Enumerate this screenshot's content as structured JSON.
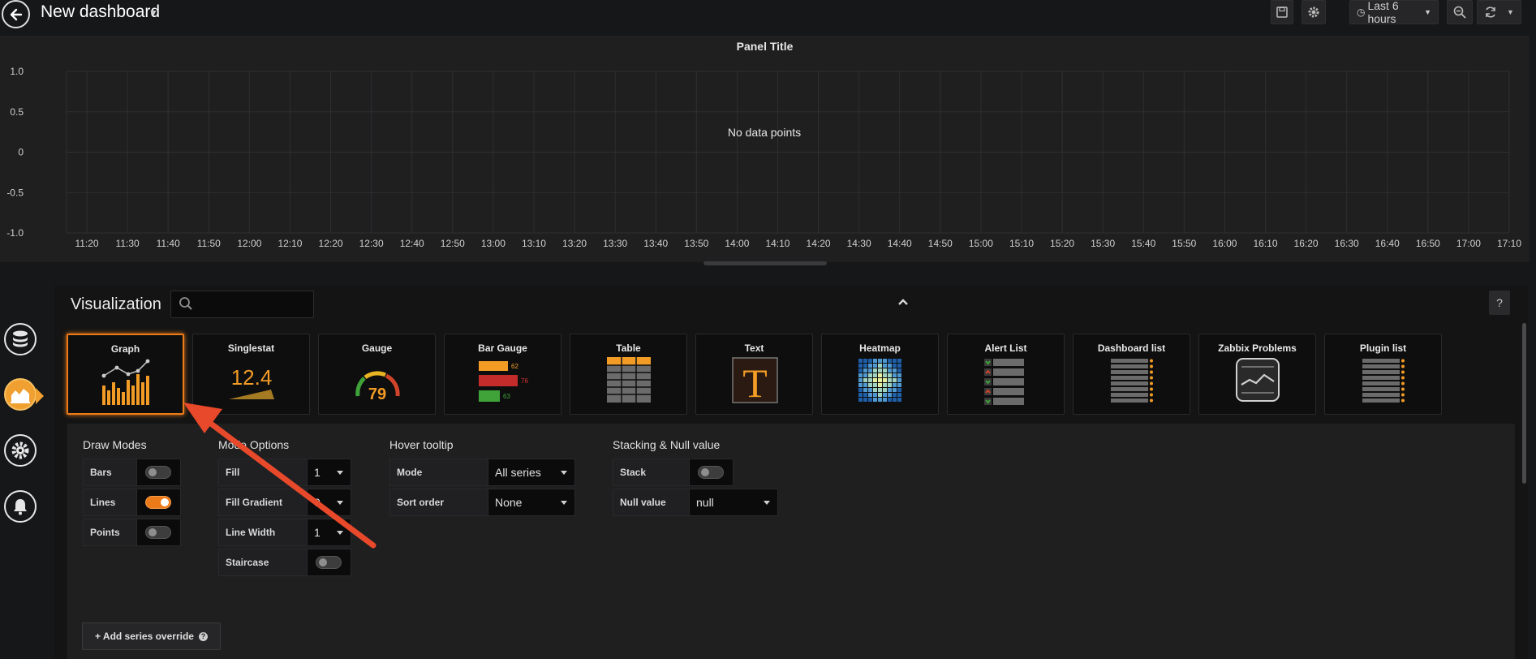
{
  "header": {
    "title": "New dashboard",
    "time_range": "Last 6 hours"
  },
  "graph_panel": {
    "title": "Panel Title",
    "no_data_text": "No data points",
    "y_ticks": [
      "1.0",
      "0.5",
      "0",
      "-0.5",
      "-1.0"
    ],
    "x_ticks": [
      "11:20",
      "11:30",
      "11:40",
      "11:50",
      "12:00",
      "12:10",
      "12:20",
      "12:30",
      "12:40",
      "12:50",
      "13:00",
      "13:10",
      "13:20",
      "13:30",
      "13:40",
      "13:50",
      "14:00",
      "14:10",
      "14:20",
      "14:30",
      "14:40",
      "14:50",
      "15:00",
      "15:10",
      "15:20",
      "15:30",
      "15:40",
      "15:50",
      "16:00",
      "16:10",
      "16:20",
      "16:30",
      "16:40",
      "16:50",
      "17:00",
      "17:10"
    ]
  },
  "visualization": {
    "title": "Visualization",
    "search_value": "",
    "types": [
      {
        "label": "Graph",
        "icon": "graph-viz-icon",
        "selected": true
      },
      {
        "label": "Singlestat",
        "icon": "singlestat-viz-icon",
        "value": "12.4"
      },
      {
        "label": "Gauge",
        "icon": "gauge-viz-icon",
        "value": "79"
      },
      {
        "label": "Bar Gauge",
        "icon": "bar-gauge-viz-icon",
        "values": [
          "62",
          "76",
          "63"
        ]
      },
      {
        "label": "Table",
        "icon": "table-viz-icon"
      },
      {
        "label": "Text",
        "icon": "text-viz-icon",
        "glyph": "T"
      },
      {
        "label": "Heatmap",
        "icon": "heatmap-viz-icon"
      },
      {
        "label": "Alert List",
        "icon": "alert-list-viz-icon"
      },
      {
        "label": "Dashboard list",
        "icon": "dashboard-list-viz-icon"
      },
      {
        "label": "Zabbix Problems",
        "icon": "zabbix-problems-viz-icon"
      },
      {
        "label": "Plugin list",
        "icon": "plugin-list-viz-icon"
      }
    ]
  },
  "draw_modes": {
    "title": "Draw Modes",
    "bars_label": "Bars",
    "bars_on": false,
    "lines_label": "Lines",
    "lines_on": true,
    "points_label": "Points",
    "points_on": false
  },
  "mode_options": {
    "title": "Mode Options",
    "fill_label": "Fill",
    "fill_value": "1",
    "fill_gradient_label": "Fill Gradient",
    "fill_gradient_value": "0",
    "line_width_label": "Line Width",
    "line_width_value": "1",
    "staircase_label": "Staircase",
    "staircase_on": false
  },
  "hover_tooltip": {
    "title": "Hover tooltip",
    "mode_label": "Mode",
    "mode_value": "All series",
    "sort_label": "Sort order",
    "sort_value": "None"
  },
  "stacking": {
    "title": "Stacking & Null value",
    "stack_label": "Stack",
    "stack_on": false,
    "null_label": "Null value",
    "null_value": "null"
  },
  "add_override_label": "+ Add series override",
  "help_label": "?",
  "colors": {
    "accent": "#eb7b18",
    "arrow": "#e8492b",
    "background": "#161719",
    "panel": "#1f1f20"
  }
}
